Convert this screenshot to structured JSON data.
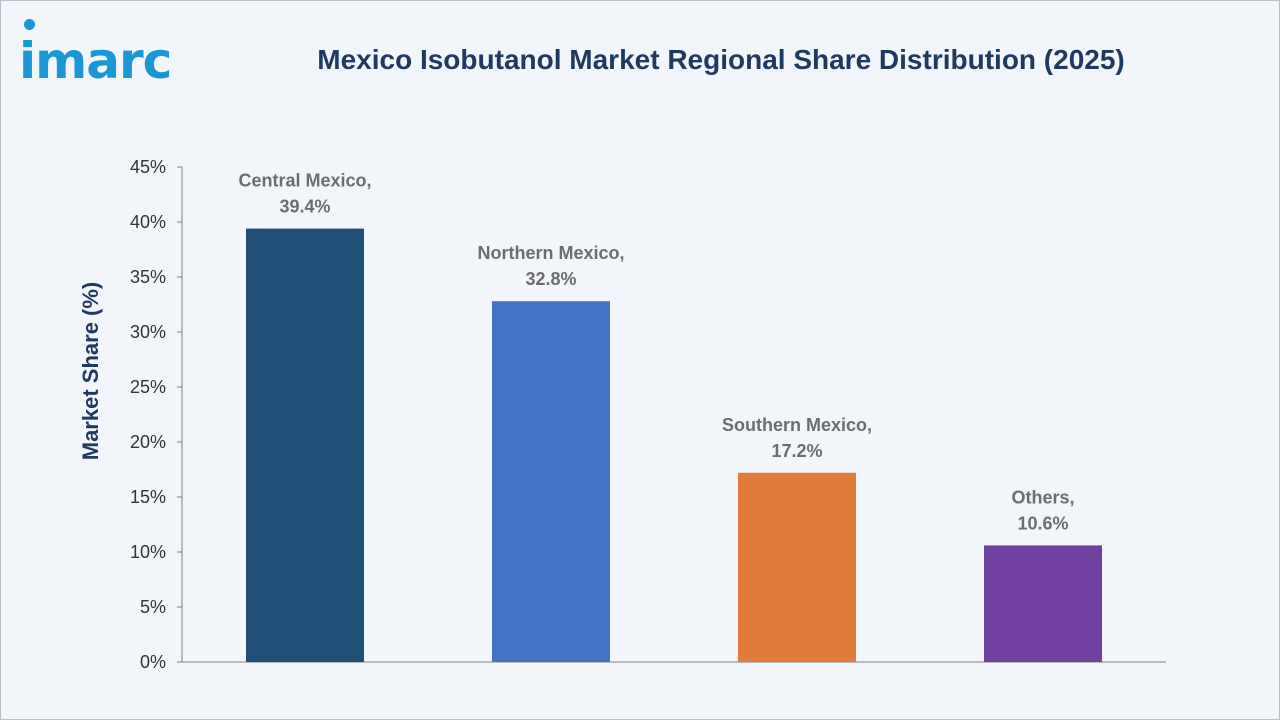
{
  "brand": {
    "logo_text": "imarc",
    "color": "#1b97d6"
  },
  "chart_data": {
    "type": "bar",
    "title": "Mexico Isobutanol Market Regional Share Distribution (2025)",
    "ylabel": "Market Share (%)",
    "xlabel": "",
    "ylim": [
      0,
      45
    ],
    "yticks": [
      "0%",
      "5%",
      "10%",
      "15%",
      "20%",
      "25%",
      "30%",
      "35%",
      "40%",
      "45%"
    ],
    "grid": false,
    "categories": [
      "Central Mexico",
      "Northern Mexico",
      "Southern Mexico",
      "Others"
    ],
    "values": [
      39.4,
      32.8,
      17.2,
      10.6
    ],
    "data_labels": [
      [
        "Central Mexico,",
        "39.4%"
      ],
      [
        "Northern Mexico,",
        "32.8%"
      ],
      [
        "Southern Mexico,",
        "17.2%"
      ],
      [
        "Others,",
        "10.6%"
      ]
    ],
    "colors": [
      "#1f4e79",
      "#4472c4",
      "#e07b39",
      "#7040a0"
    ]
  }
}
